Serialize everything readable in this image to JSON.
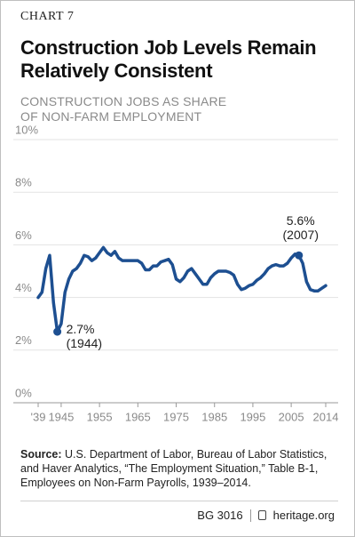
{
  "chart_data": {
    "type": "line",
    "kicker": "CHART 7",
    "title": "Construction Job Levels Remain Relatively Consistent",
    "subtitle": "CONSTRUCTION JOBS AS SHARE OF NON-FARM EMPLOYMENT",
    "x": [
      1939,
      1940,
      1941,
      1942,
      1943,
      1944,
      1945,
      1946,
      1947,
      1948,
      1949,
      1950,
      1951,
      1952,
      1953,
      1954,
      1955,
      1956,
      1957,
      1958,
      1959,
      1960,
      1961,
      1962,
      1963,
      1964,
      1965,
      1966,
      1967,
      1968,
      1969,
      1970,
      1971,
      1972,
      1973,
      1974,
      1975,
      1976,
      1977,
      1978,
      1979,
      1980,
      1981,
      1982,
      1983,
      1984,
      1985,
      1986,
      1987,
      1988,
      1989,
      1990,
      1991,
      1992,
      1993,
      1994,
      1995,
      1996,
      1997,
      1998,
      1999,
      2000,
      2001,
      2002,
      2003,
      2004,
      2005,
      2006,
      2007,
      2008,
      2009,
      2010,
      2011,
      2012,
      2013,
      2014
    ],
    "series": [
      {
        "name": "Construction jobs as share of non-farm employment",
        "color": "#1d4f91",
        "values": [
          4.0,
          4.2,
          5.1,
          5.6,
          3.8,
          2.7,
          3.0,
          4.2,
          4.7,
          5.0,
          5.1,
          5.3,
          5.6,
          5.55,
          5.4,
          5.5,
          5.7,
          5.9,
          5.7,
          5.6,
          5.75,
          5.5,
          5.4,
          5.4,
          5.4,
          5.4,
          5.4,
          5.3,
          5.05,
          5.05,
          5.2,
          5.2,
          5.35,
          5.4,
          5.45,
          5.25,
          4.7,
          4.6,
          4.75,
          5.0,
          5.1,
          4.9,
          4.7,
          4.5,
          4.5,
          4.75,
          4.9,
          5.0,
          5.0,
          5.0,
          4.95,
          4.85,
          4.5,
          4.3,
          4.35,
          4.45,
          4.5,
          4.65,
          4.75,
          4.9,
          5.1,
          5.2,
          5.25,
          5.2,
          5.2,
          5.3,
          5.5,
          5.65,
          5.6,
          5.3,
          4.6,
          4.3,
          4.25,
          4.25,
          4.35,
          4.45
        ]
      }
    ],
    "xlim": [
      1939,
      2014
    ],
    "xticks": [
      {
        "value": 1939,
        "label": "'39"
      },
      1945,
      1955,
      1965,
      1975,
      1985,
      1995,
      2005,
      2014
    ],
    "ylim": [
      0,
      10
    ],
    "yticks": [
      {
        "value": 0,
        "label": "0%"
      },
      {
        "value": 2,
        "label": "2%"
      },
      {
        "value": 4,
        "label": "4%"
      },
      {
        "value": 6,
        "label": "6%"
      },
      {
        "value": 8,
        "label": "8%"
      },
      {
        "value": 10,
        "label": "10%"
      }
    ],
    "grid": true,
    "annotations": [
      {
        "x": 1944,
        "y": 2.7,
        "label": "2.7%",
        "sublabel": "(1944)"
      },
      {
        "x": 2007,
        "y": 5.6,
        "label": "5.6%",
        "sublabel": "(2007)"
      }
    ],
    "source": {
      "label": "Source:",
      "text": "U.S. Department of Labor, Bureau of Labor Statistics, and Haver Analytics, “The Employment Situation,” Table B-1, Employees on Non-Farm Payrolls, 1939–2014."
    },
    "footer": {
      "code": "BG 3016",
      "site": "heritage.org"
    }
  }
}
